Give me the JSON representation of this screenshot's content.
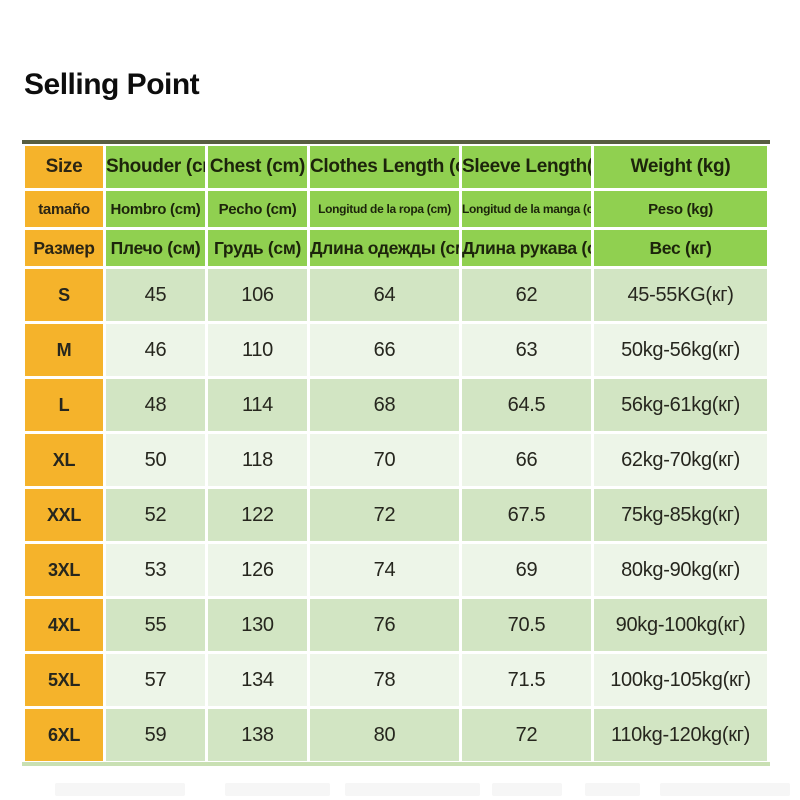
{
  "page": {
    "title": "Selling Point"
  },
  "table": {
    "header_rows": [
      {
        "lang": "en",
        "cells": [
          "Size",
          "Shouder (cm)",
          "Chest (cm)",
          "Clothes Length (cm)",
          "Sleeve Length(cm)",
          "Weight (kg)"
        ]
      },
      {
        "lang": "es",
        "cells": [
          "tamaño",
          "Hombro (cm)",
          "Pecho (cm)",
          "Longitud de la ropa (cm)",
          "Longitud de la manga (cm)",
          "Peso (kg)"
        ]
      },
      {
        "lang": "ru",
        "cells": [
          "Размер",
          "Плечо (см)",
          "Грудь (см)",
          "Длина одежды (см)",
          "Длина рукава (см)",
          "Вес (кг)"
        ]
      }
    ],
    "rows": [
      [
        "S",
        "45",
        "106",
        "64",
        "62",
        "45-55KG(кг)"
      ],
      [
        "M",
        "46",
        "110",
        "66",
        "63",
        "50kg-56kg(кг)"
      ],
      [
        "L",
        "48",
        "114",
        "68",
        "64.5",
        "56kg-61kg(кг)"
      ],
      [
        "XL",
        "50",
        "118",
        "70",
        "66",
        "62kg-70kg(кг)"
      ],
      [
        "XXL",
        "52",
        "122",
        "72",
        "67.5",
        "75kg-85kg(кг)"
      ],
      [
        "3XL",
        "53",
        "126",
        "74",
        "69",
        "80kg-90kg(кг)"
      ],
      [
        "4XL",
        "55",
        "130",
        "76",
        "70.5",
        "90kg-100kg(кг)"
      ],
      [
        "5XL",
        "57",
        "134",
        "78",
        "71.5",
        "100kg-105kg(кг)"
      ],
      [
        "6XL",
        "59",
        "138",
        "80",
        "72",
        "110kg-120kg(кг)"
      ]
    ],
    "colors": {
      "size_column_yellow": "#f5b32b",
      "header_green": "#90d050",
      "row_green_dark": "#d2e5c3",
      "row_green_light": "#edf5e8",
      "top_border": "#3a4120",
      "bottom_border": "#c9e0b3",
      "text_dark": "#26261e"
    }
  }
}
